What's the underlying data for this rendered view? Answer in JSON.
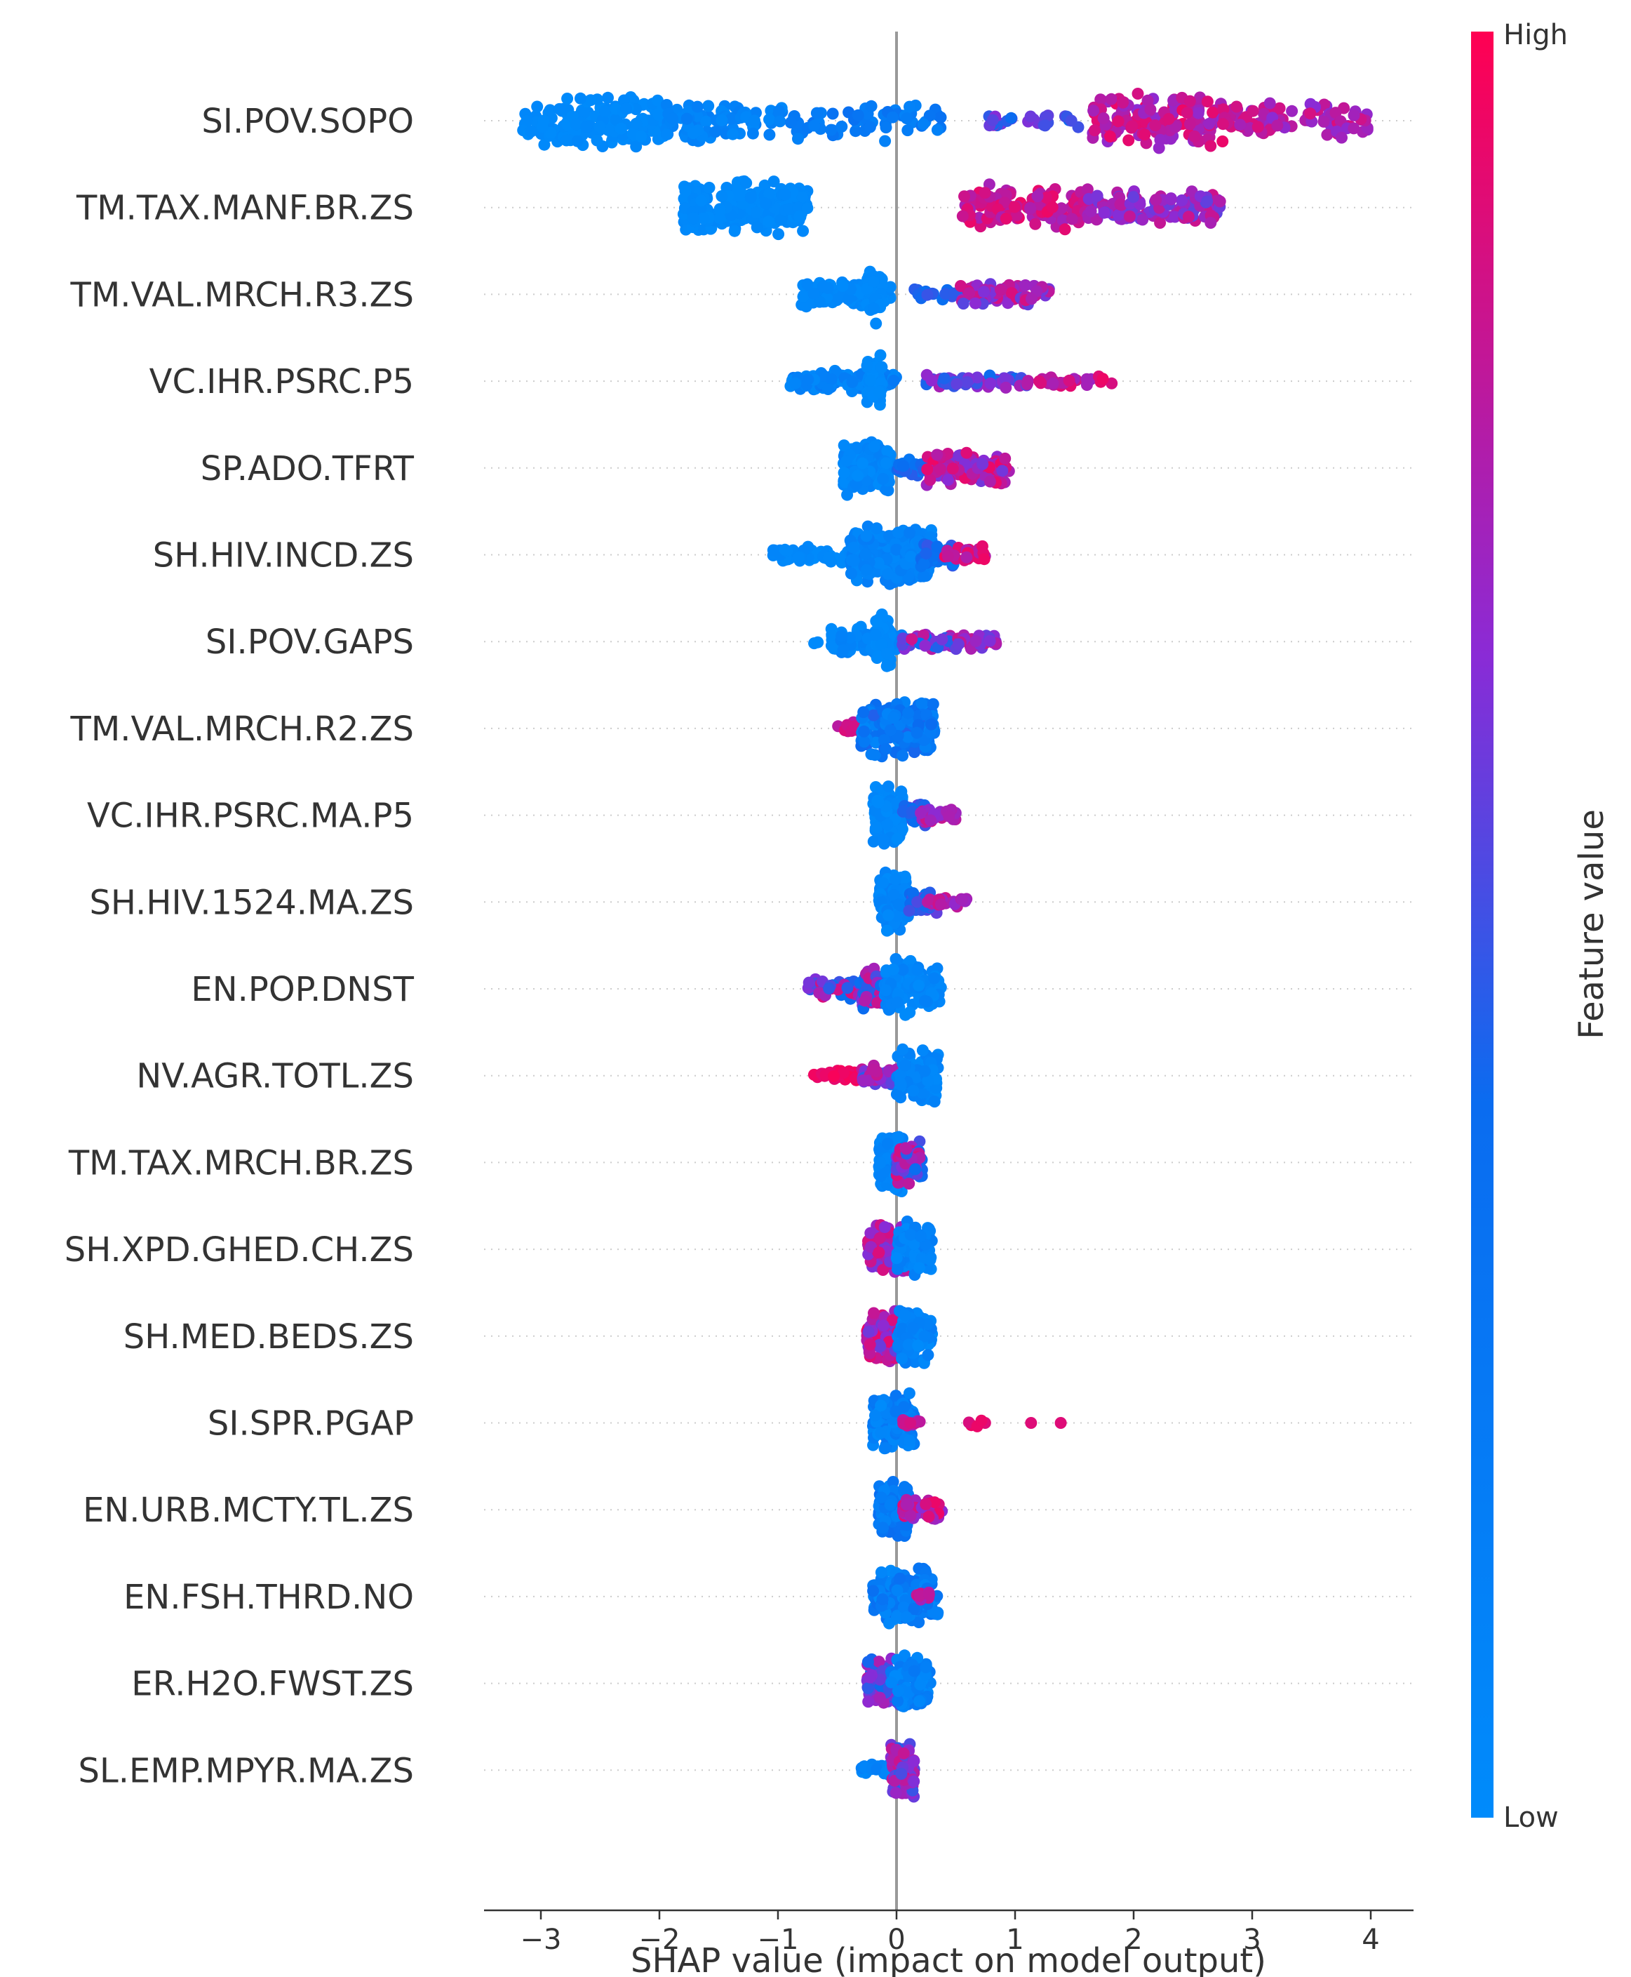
{
  "chart_data": {
    "type": "scatter",
    "subtype": "beeswarm",
    "title": "",
    "xlabel": "SHAP value (impact on model output)",
    "xlim": [
      -3.5,
      4.35
    ],
    "xticks": [
      {
        "value": -3,
        "label": "−3"
      },
      {
        "value": -2,
        "label": "−2"
      },
      {
        "value": -1,
        "label": "−1"
      },
      {
        "value": 0,
        "label": "0"
      },
      {
        "value": 1,
        "label": "1"
      },
      {
        "value": 2,
        "label": "2"
      },
      {
        "value": 3,
        "label": "3"
      },
      {
        "value": 4,
        "label": "4"
      }
    ],
    "colorbar": {
      "title": "Feature value",
      "high_label": "High",
      "low_label": "Low",
      "colors": {
        "high": "#ff0052",
        "mid": "#8a2bd6",
        "low": "#008bfb"
      }
    },
    "reference_line": {
      "x": 0,
      "color": "#999999"
    },
    "features": [
      {
        "name": "SI.POV.SOPO",
        "segments": [
          {
            "x_from": -3.15,
            "x_to": -1.95,
            "count": 170,
            "value_from": 0.0,
            "value_to": 0.06,
            "spread": 0.42
          },
          {
            "x_from": -1.95,
            "x_to": -0.95,
            "count": 85,
            "value_from": 0.04,
            "value_to": 0.18,
            "spread": 0.32
          },
          {
            "x_from": -0.95,
            "x_to": 0.45,
            "count": 60,
            "value_from": 0.12,
            "value_to": 0.35,
            "spread": 0.3
          },
          {
            "x_from": 0.7,
            "x_to": 1.55,
            "count": 25,
            "value_from": 0.4,
            "value_to": 0.75,
            "spread": 0.12
          },
          {
            "x_from": 1.65,
            "x_to": 2.75,
            "count": 170,
            "value_from": 0.65,
            "value_to": 0.95,
            "spread": 0.42
          },
          {
            "x_from": 2.75,
            "x_to": 4.0,
            "count": 90,
            "value_from": 0.65,
            "value_to": 0.9,
            "spread": 0.28
          }
        ]
      },
      {
        "name": "TM.TAX.MANF.BR.ZS",
        "segments": [
          {
            "x_from": -1.8,
            "x_to": -0.75,
            "count": 240,
            "value_from": 0.0,
            "value_to": 0.06,
            "spread": 0.42
          },
          {
            "x_from": 0.55,
            "x_to": 1.6,
            "count": 140,
            "value_from": 0.72,
            "value_to": 0.95,
            "spread": 0.34
          },
          {
            "x_from": 1.6,
            "x_to": 2.75,
            "count": 110,
            "value_from": 0.55,
            "value_to": 0.85,
            "spread": 0.3
          }
        ]
      },
      {
        "name": "TM.VAL.MRCH.R3.ZS",
        "segments": [
          {
            "x_from": -0.82,
            "x_to": -0.05,
            "count": 110,
            "value_from": 0.0,
            "value_to": 0.08,
            "spread": 0.2
          },
          {
            "x_from": -0.25,
            "x_to": -0.12,
            "count": 60,
            "value_from": 0.0,
            "value_to": 0.05,
            "spread": 0.42
          },
          {
            "x_from": 0.15,
            "x_to": 0.6,
            "count": 20,
            "value_from": 0.35,
            "value_to": 0.55,
            "spread": 0.1
          },
          {
            "x_from": 0.5,
            "x_to": 1.3,
            "count": 70,
            "value_from": 0.55,
            "value_to": 0.9,
            "spread": 0.16
          }
        ]
      },
      {
        "name": "VC.IHR.PSRC.P5",
        "segments": [
          {
            "x_from": -0.9,
            "x_to": 0.0,
            "count": 100,
            "value_from": 0.0,
            "value_to": 0.25,
            "spread": 0.16
          },
          {
            "x_from": -0.25,
            "x_to": -0.12,
            "count": 60,
            "value_from": 0.0,
            "value_to": 0.05,
            "spread": 0.42
          },
          {
            "x_from": 0.25,
            "x_to": 1.1,
            "count": 60,
            "value_from": 0.4,
            "value_to": 0.75,
            "spread": 0.1
          },
          {
            "x_from": 1.1,
            "x_to": 1.85,
            "count": 30,
            "value_from": 0.7,
            "value_to": 0.95,
            "spread": 0.08
          }
        ]
      },
      {
        "name": "SP.ADO.TFRT",
        "segments": [
          {
            "x_from": -0.45,
            "x_to": -0.05,
            "count": 160,
            "value_from": 0.0,
            "value_to": 0.15,
            "spread": 0.42
          },
          {
            "x_from": 0.0,
            "x_to": 0.3,
            "count": 30,
            "value_from": 0.25,
            "value_to": 0.5,
            "spread": 0.15
          },
          {
            "x_from": 0.25,
            "x_to": 0.95,
            "count": 110,
            "value_from": 0.6,
            "value_to": 0.95,
            "spread": 0.26
          }
        ]
      },
      {
        "name": "SH.HIV.INCD.ZS",
        "segments": [
          {
            "x_from": -1.05,
            "x_to": -0.4,
            "count": 45,
            "value_from": 0.0,
            "value_to": 0.08,
            "spread": 0.12
          },
          {
            "x_from": -0.4,
            "x_to": 0.3,
            "count": 260,
            "value_from": 0.02,
            "value_to": 0.2,
            "spread": 0.44
          },
          {
            "x_from": 0.2,
            "x_to": 0.5,
            "count": 30,
            "value_from": 0.25,
            "value_to": 0.5,
            "spread": 0.22
          },
          {
            "x_from": 0.4,
            "x_to": 0.75,
            "count": 25,
            "value_from": 0.75,
            "value_to": 0.95,
            "spread": 0.14
          }
        ]
      },
      {
        "name": "SI.POV.GAPS",
        "segments": [
          {
            "x_from": -0.7,
            "x_to": -0.65,
            "count": 2,
            "value_from": 0.0,
            "value_to": 0.02,
            "spread": 0.05
          },
          {
            "x_from": -0.55,
            "x_to": 0.05,
            "count": 110,
            "value_from": 0.0,
            "value_to": 0.15,
            "spread": 0.22
          },
          {
            "x_from": -0.18,
            "x_to": -0.05,
            "count": 60,
            "value_from": 0.0,
            "value_to": 0.05,
            "spread": 0.44
          },
          {
            "x_from": 0.05,
            "x_to": 0.5,
            "count": 40,
            "value_from": 0.35,
            "value_to": 0.85,
            "spread": 0.12
          },
          {
            "x_from": 0.5,
            "x_to": 0.85,
            "count": 35,
            "value_from": 0.55,
            "value_to": 0.85,
            "spread": 0.12
          }
        ]
      },
      {
        "name": "TM.VAL.MRCH.R2.ZS",
        "segments": [
          {
            "x_from": -0.5,
            "x_to": -0.25,
            "count": 15,
            "value_from": 0.75,
            "value_to": 0.9,
            "spread": 0.12
          },
          {
            "x_from": -0.3,
            "x_to": 0.32,
            "count": 200,
            "value_from": 0.05,
            "value_to": 0.45,
            "spread": 0.44
          }
        ]
      },
      {
        "name": "VC.IHR.PSRC.MA.P5",
        "segments": [
          {
            "x_from": -0.2,
            "x_to": 0.05,
            "count": 130,
            "value_from": 0.0,
            "value_to": 0.1,
            "spread": 0.44
          },
          {
            "x_from": 0.05,
            "x_to": 0.25,
            "count": 30,
            "value_from": 0.35,
            "value_to": 0.6,
            "spread": 0.2
          },
          {
            "x_from": 0.2,
            "x_to": 0.5,
            "count": 30,
            "value_from": 0.65,
            "value_to": 0.9,
            "spread": 0.12
          }
        ]
      },
      {
        "name": "SH.HIV.1524.MA.ZS",
        "segments": [
          {
            "x_from": -0.15,
            "x_to": 0.1,
            "count": 130,
            "value_from": 0.0,
            "value_to": 0.15,
            "spread": 0.44
          },
          {
            "x_from": 0.1,
            "x_to": 0.35,
            "count": 30,
            "value_from": 0.35,
            "value_to": 0.6,
            "spread": 0.18
          },
          {
            "x_from": 0.25,
            "x_to": 0.6,
            "count": 20,
            "value_from": 0.65,
            "value_to": 0.9,
            "spread": 0.1
          }
        ]
      },
      {
        "name": "EN.POP.DNST",
        "segments": [
          {
            "x_from": -0.75,
            "x_to": -0.3,
            "count": 40,
            "value_from": 0.35,
            "value_to": 0.9,
            "spread": 0.15
          },
          {
            "x_from": -0.3,
            "x_to": 0.05,
            "count": 60,
            "value_from": 0.3,
            "value_to": 0.9,
            "spread": 0.32
          },
          {
            "x_from": -0.1,
            "x_to": 0.38,
            "count": 110,
            "value_from": 0.0,
            "value_to": 0.15,
            "spread": 0.44
          }
        ]
      },
      {
        "name": "NV.AGR.TOTL.ZS",
        "segments": [
          {
            "x_from": -0.72,
            "x_to": -0.3,
            "count": 30,
            "value_from": 0.92,
            "value_to": 0.98,
            "spread": 0.1
          },
          {
            "x_from": -0.3,
            "x_to": 0.3,
            "count": 70,
            "value_from": 0.4,
            "value_to": 0.85,
            "spread": 0.16
          },
          {
            "x_from": 0.0,
            "x_to": 0.35,
            "count": 110,
            "value_from": 0.0,
            "value_to": 0.15,
            "spread": 0.44
          }
        ]
      },
      {
        "name": "TM.TAX.MRCH.BR.ZS",
        "segments": [
          {
            "x_from": -0.15,
            "x_to": 0.05,
            "count": 120,
            "value_from": 0.0,
            "value_to": 0.15,
            "spread": 0.44
          },
          {
            "x_from": 0.0,
            "x_to": 0.22,
            "count": 80,
            "value_from": 0.35,
            "value_to": 0.9,
            "spread": 0.32
          }
        ]
      },
      {
        "name": "SH.XPD.GHED.CH.ZS",
        "segments": [
          {
            "x_from": -0.25,
            "x_to": 0.1,
            "count": 120,
            "value_from": 0.6,
            "value_to": 0.95,
            "spread": 0.38
          },
          {
            "x_from": 0.0,
            "x_to": 0.3,
            "count": 90,
            "value_from": 0.0,
            "value_to": 0.2,
            "spread": 0.44
          }
        ]
      },
      {
        "name": "SH.MED.BEDS.ZS",
        "segments": [
          {
            "x_from": -0.25,
            "x_to": 0.05,
            "count": 110,
            "value_from": 0.55,
            "value_to": 0.95,
            "spread": 0.38
          },
          {
            "x_from": 0.0,
            "x_to": 0.3,
            "count": 90,
            "value_from": 0.0,
            "value_to": 0.2,
            "spread": 0.44
          }
        ]
      },
      {
        "name": "SI.SPR.PGAP",
        "segments": [
          {
            "x_from": -0.2,
            "x_to": 0.15,
            "count": 140,
            "value_from": 0.0,
            "value_to": 0.3,
            "spread": 0.44
          },
          {
            "x_from": 0.05,
            "x_to": 0.2,
            "count": 10,
            "value_from": 0.7,
            "value_to": 0.9,
            "spread": 0.05
          },
          {
            "x_from": 0.6,
            "x_to": 0.75,
            "count": 5,
            "value_from": 0.85,
            "value_to": 0.95,
            "spread": 0.06
          },
          {
            "x_from": 1.12,
            "x_to": 1.15,
            "count": 1,
            "value_from": 0.9,
            "value_to": 0.9,
            "spread": 0.0
          },
          {
            "x_from": 1.37,
            "x_to": 1.4,
            "count": 1,
            "value_from": 0.9,
            "value_to": 0.9,
            "spread": 0.0
          }
        ]
      },
      {
        "name": "EN.URB.MCTY.TL.ZS",
        "segments": [
          {
            "x_from": -0.15,
            "x_to": 0.1,
            "count": 120,
            "value_from": 0.05,
            "value_to": 0.4,
            "spread": 0.44
          },
          {
            "x_from": 0.05,
            "x_to": 0.4,
            "count": 50,
            "value_from": 0.65,
            "value_to": 0.95,
            "spread": 0.2
          }
        ]
      },
      {
        "name": "EN.FSH.THRD.NO",
        "segments": [
          {
            "x_from": -0.2,
            "x_to": 0.35,
            "count": 180,
            "value_from": 0.0,
            "value_to": 0.35,
            "spread": 0.44
          },
          {
            "x_from": 0.15,
            "x_to": 0.3,
            "count": 8,
            "value_from": 0.7,
            "value_to": 0.9,
            "spread": 0.1
          }
        ]
      },
      {
        "name": "ER.H2O.FWST.ZS",
        "segments": [
          {
            "x_from": -0.25,
            "x_to": 0.05,
            "count": 90,
            "value_from": 0.4,
            "value_to": 0.8,
            "spread": 0.4
          },
          {
            "x_from": -0.05,
            "x_to": 0.3,
            "count": 80,
            "value_from": 0.0,
            "value_to": 0.25,
            "spread": 0.44
          }
        ]
      },
      {
        "name": "SL.EMP.MPYR.MA.ZS",
        "segments": [
          {
            "x_from": -0.3,
            "x_to": 0.05,
            "count": 25,
            "value_from": 0.0,
            "value_to": 0.2,
            "spread": 0.12
          },
          {
            "x_from": -0.05,
            "x_to": 0.15,
            "count": 110,
            "value_from": 0.45,
            "value_to": 0.85,
            "spread": 0.44
          }
        ]
      }
    ]
  }
}
